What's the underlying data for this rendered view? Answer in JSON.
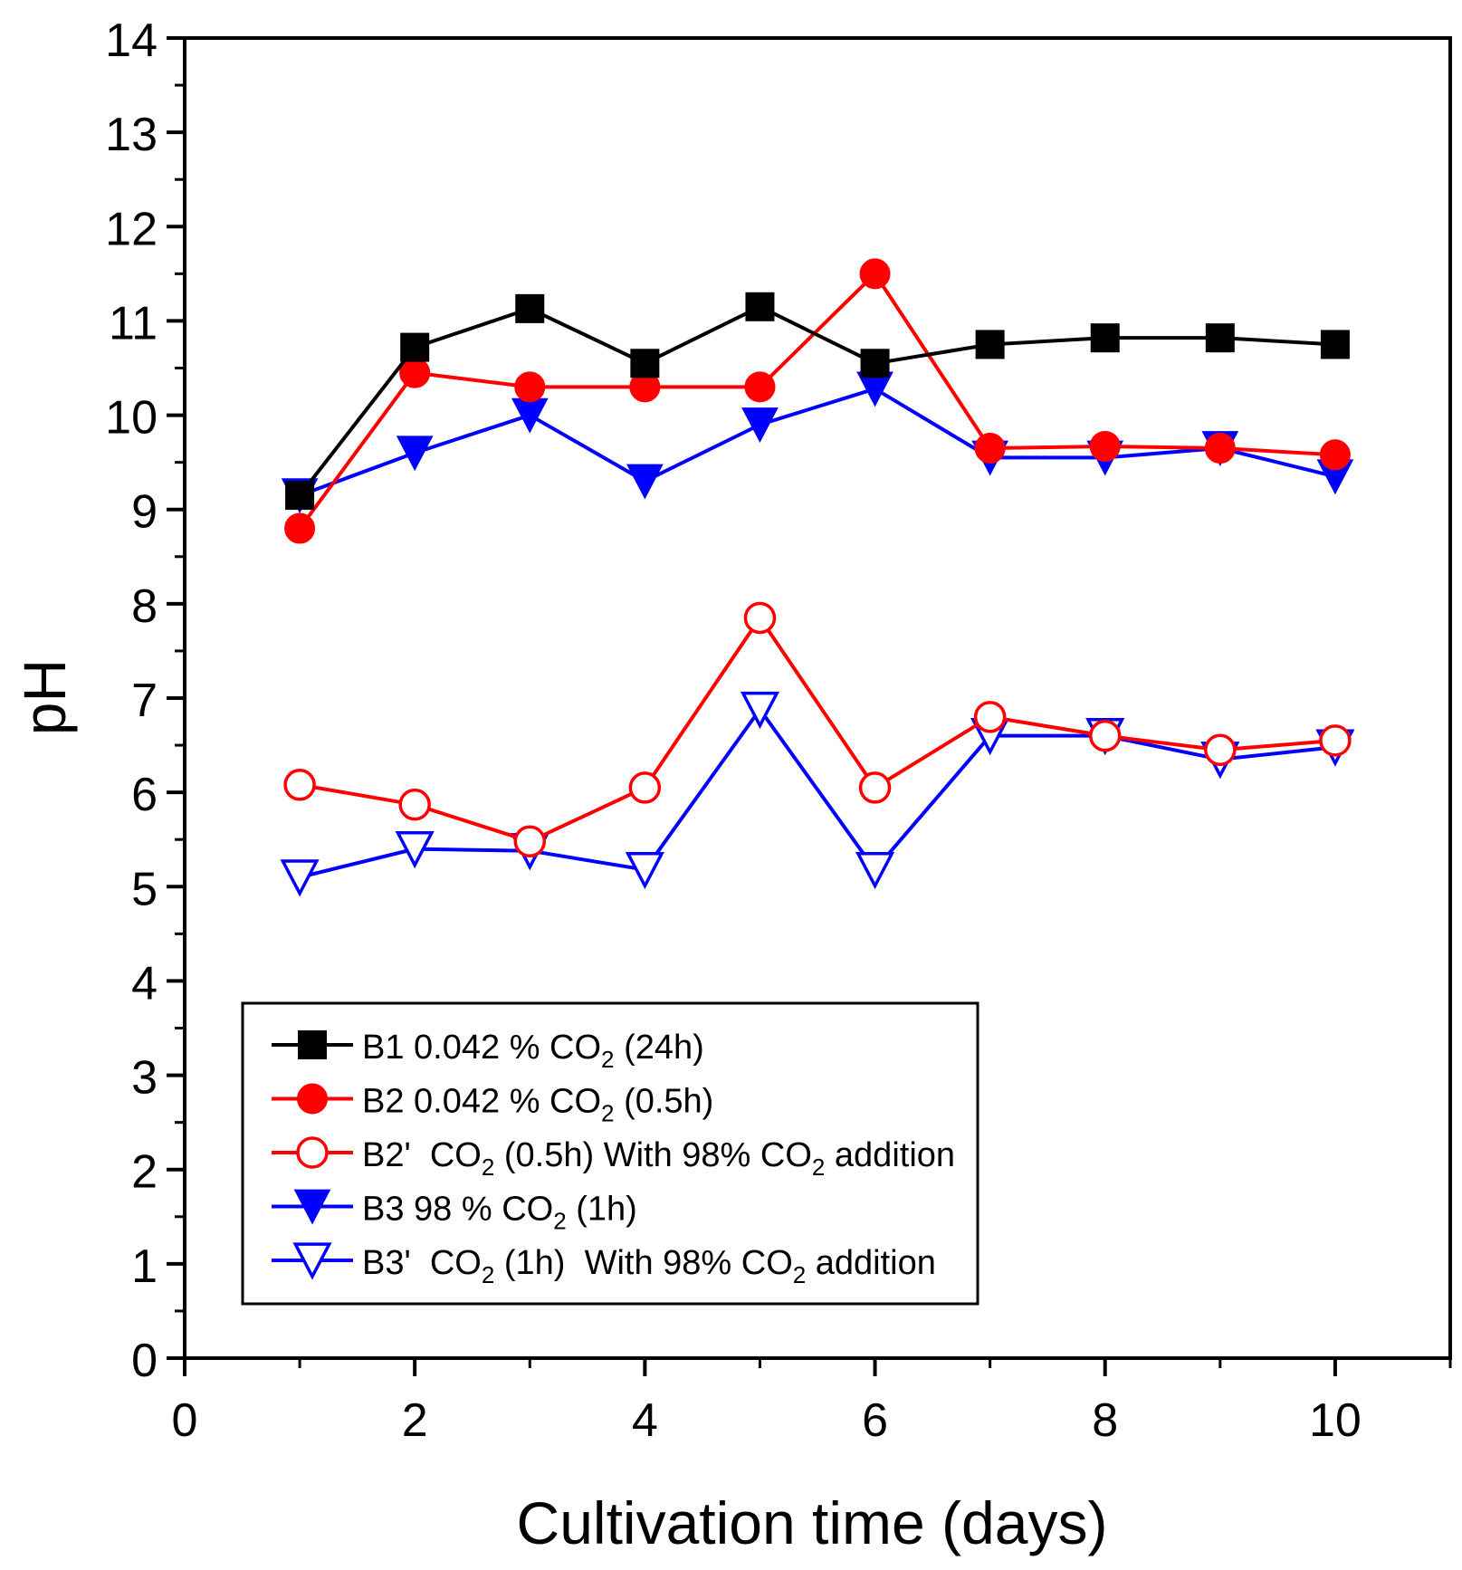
{
  "chart_data": {
    "type": "line",
    "title": "",
    "xlabel": "Cultivation time (days)",
    "ylabel": "pH",
    "xlim": [
      0,
      11
    ],
    "ylim": [
      0,
      14
    ],
    "xticks": [
      0,
      2,
      4,
      6,
      8,
      10
    ],
    "yticks": [
      0,
      1,
      2,
      3,
      4,
      5,
      6,
      7,
      8,
      9,
      10,
      11,
      12,
      13,
      14
    ],
    "grid": false,
    "legend_position": "bottom-left",
    "x": [
      1,
      2,
      3,
      4,
      5,
      6,
      7,
      8,
      9,
      10
    ],
    "series": [
      {
        "name": "B1 0.042 % CO2 (24h)",
        "legend_main": "B1 0.042 % CO",
        "legend_sub": "2",
        "legend_tail": " (24h)",
        "color": "#000000",
        "marker": "square",
        "filled": true,
        "values": [
          9.15,
          10.72,
          11.13,
          10.55,
          11.15,
          10.55,
          10.75,
          10.82,
          10.82,
          10.75
        ]
      },
      {
        "name": "B2 0.042 % CO2 (0.5h)",
        "legend_main": "B2 0.042 % CO",
        "legend_sub": "2",
        "legend_tail": " (0.5h)",
        "color": "#ff0000",
        "marker": "circle",
        "filled": true,
        "values": [
          8.8,
          10.45,
          10.3,
          10.3,
          10.3,
          11.5,
          9.65,
          9.67,
          9.65,
          9.58
        ]
      },
      {
        "name": "B2'  CO2 (0.5h) With 98% CO2 addition",
        "legend_main": "B2'  CO",
        "legend_sub": "2",
        "legend_mid": " (0.5h) With 98% CO",
        "legend_sub2": "2",
        "legend_tail": " addition",
        "color": "#ff0000",
        "marker": "circle",
        "filled": false,
        "values": [
          6.08,
          5.87,
          5.48,
          6.05,
          7.85,
          6.05,
          6.8,
          6.6,
          6.45,
          6.55
        ]
      },
      {
        "name": "B3 98 % CO2 (1h)",
        "legend_main": "B3 98 % CO",
        "legend_sub": "2",
        "legend_tail": " (1h)",
        "color": "#0000ff",
        "marker": "triangle-down",
        "filled": true,
        "values": [
          9.15,
          9.6,
          10.0,
          9.3,
          9.9,
          10.28,
          9.55,
          9.55,
          9.65,
          9.35
        ]
      },
      {
        "name": "B3'  CO2 (1h)  With 98% CO2 addition",
        "legend_main": "B3'  CO",
        "legend_sub": "2",
        "legend_mid": " (1h)  With 98% CO",
        "legend_sub2": "2",
        "legend_tail": " addition",
        "color": "#0000ff",
        "marker": "triangle-down",
        "filled": false,
        "values": [
          5.1,
          5.4,
          5.38,
          5.18,
          6.88,
          5.18,
          6.6,
          6.6,
          6.35,
          6.48
        ]
      }
    ]
  }
}
